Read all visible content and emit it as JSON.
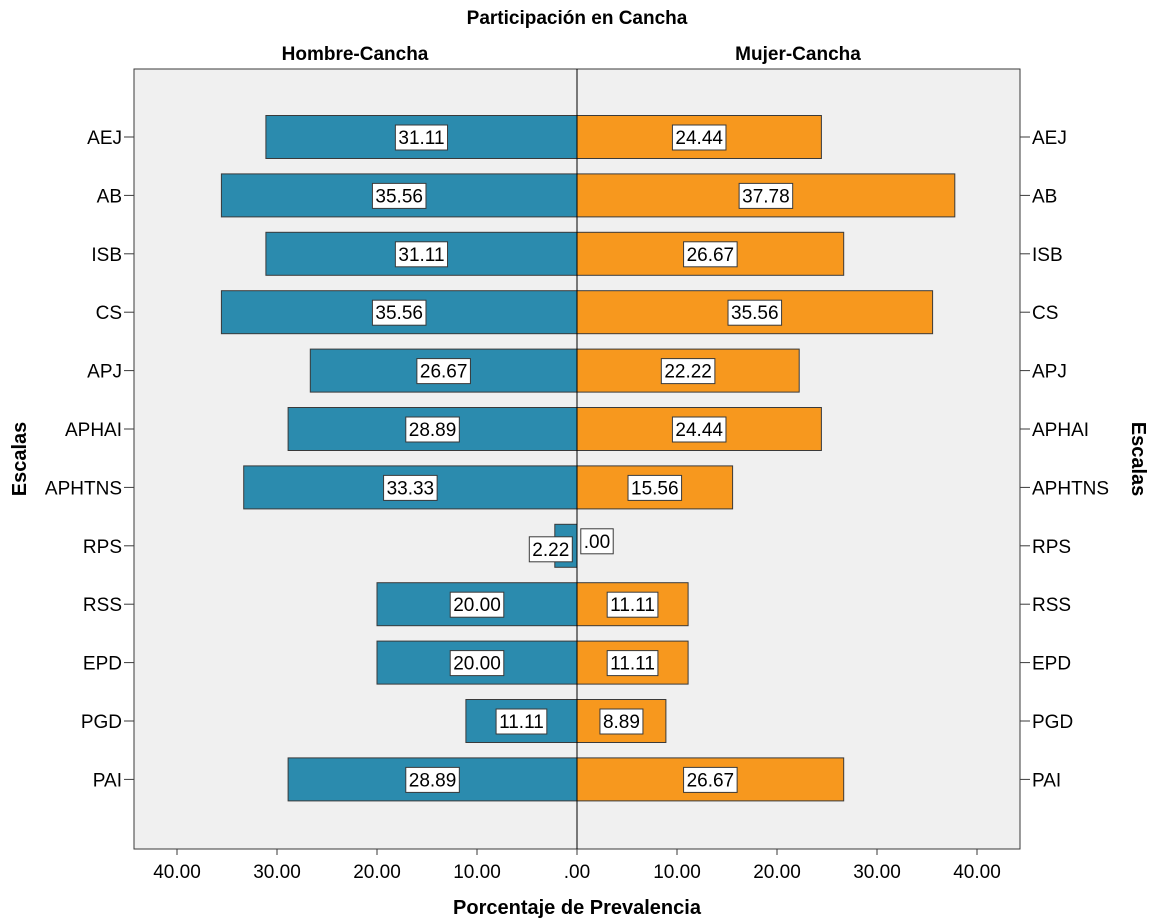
{
  "chart_data": {
    "type": "bar",
    "orientation": "horizontal-butterfly",
    "title": "Participación en Cancha",
    "xlabel": "Porcentaje de Prevalencia",
    "ylabel": "Escalas",
    "xlim": [
      0,
      40
    ],
    "xticks": [
      40,
      30,
      20,
      10,
      0
    ],
    "xtick_labels_left": [
      "40.00",
      "30.00",
      "20.00",
      "10.00",
      ".00"
    ],
    "xtick_labels_right": [
      "10.00",
      "20.00",
      "30.00",
      "40.00"
    ],
    "grid": false,
    "categories": [
      "AEJ",
      "AB",
      "ISB",
      "CS",
      "APJ",
      "APHAI",
      "APHTNS",
      "RPS",
      "RSS",
      "EPD",
      "PGD",
      "PAI"
    ],
    "series": [
      {
        "name": "Hombre-Cancha",
        "side": "left",
        "color": "#2B8BAE",
        "values": [
          31.11,
          35.56,
          31.11,
          35.56,
          26.67,
          28.89,
          33.33,
          2.22,
          20.0,
          20.0,
          11.11,
          28.89
        ],
        "labels": [
          "31.11",
          "35.56",
          "31.11",
          "35.56",
          "26.67",
          "28.89",
          "33.33",
          "2.22",
          "20.00",
          "20.00",
          "11.11",
          "28.89"
        ]
      },
      {
        "name": "Mujer-Cancha",
        "side": "right",
        "color": "#F7981E",
        "values": [
          24.44,
          37.78,
          26.67,
          35.56,
          22.22,
          24.44,
          15.56,
          0.0,
          11.11,
          11.11,
          8.89,
          26.67
        ],
        "labels": [
          "24.44",
          "37.78",
          "26.67",
          "35.56",
          "22.22",
          "24.44",
          "15.56",
          ".00",
          "11.11",
          "11.11",
          "8.89",
          "26.67"
        ]
      }
    ],
    "colors": {
      "plot_background": "#F0F0F0",
      "axis": "#3A3A3A"
    }
  }
}
